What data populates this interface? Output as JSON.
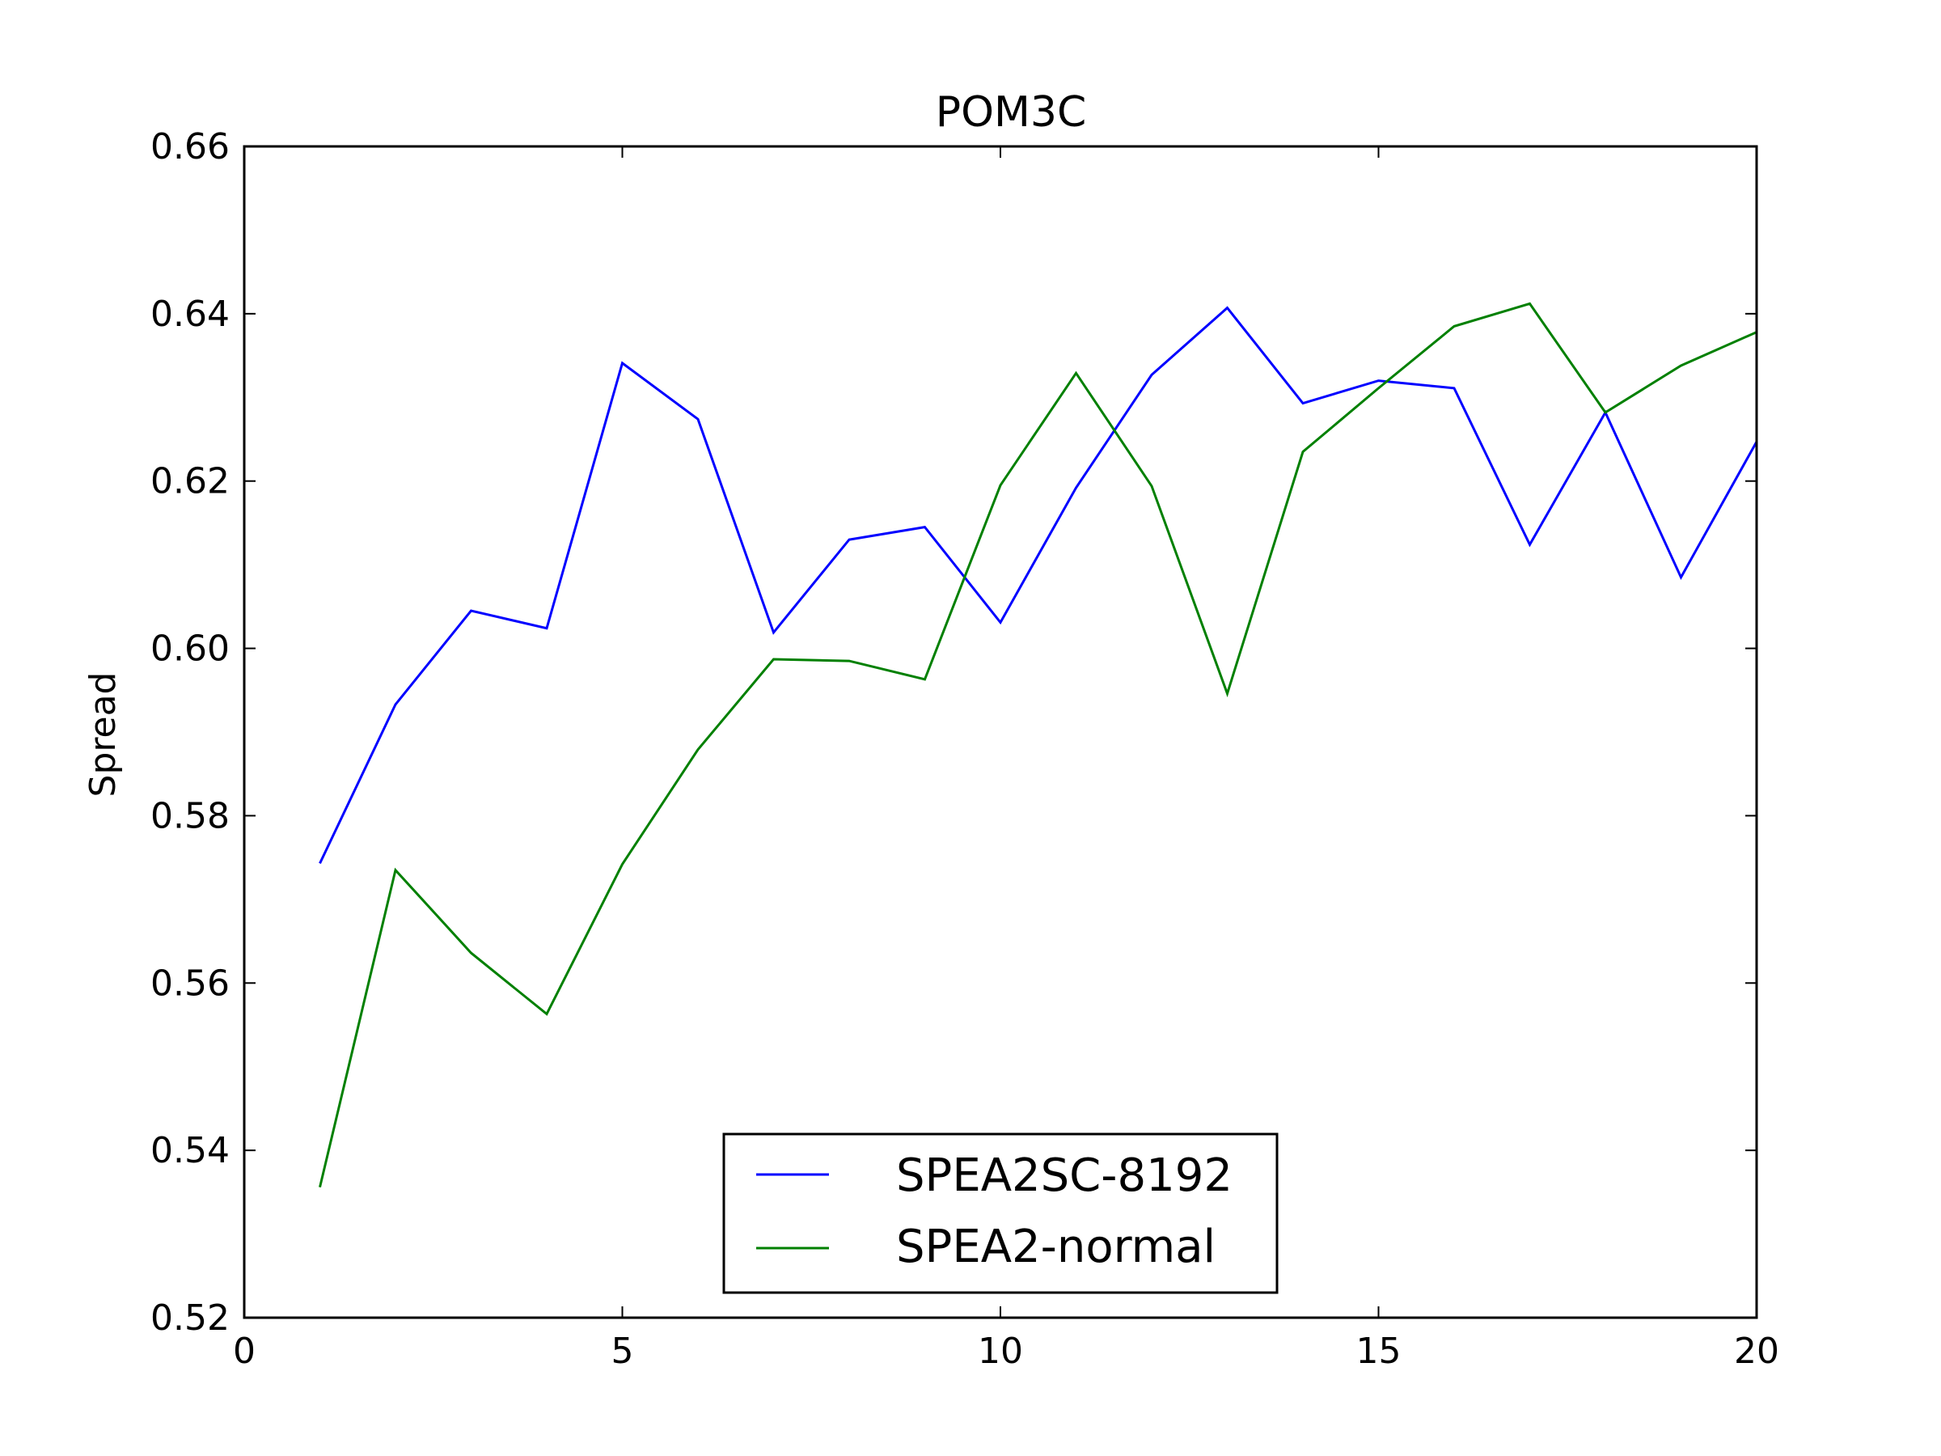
{
  "chart_data": {
    "type": "line",
    "title": "POM3C",
    "xlabel": "",
    "ylabel": "Spread",
    "xlim": [
      0,
      20
    ],
    "ylim": [
      0.52,
      0.66
    ],
    "xticks": [
      0,
      5,
      10,
      15,
      20
    ],
    "xtick_labels": [
      "0",
      "5",
      "10",
      "15",
      "20"
    ],
    "yticks": [
      0.52,
      0.54,
      0.56,
      0.58,
      0.6,
      0.62,
      0.64,
      0.66
    ],
    "ytick_labels": [
      "0.52",
      "0.54",
      "0.56",
      "0.58",
      "0.60",
      "0.62",
      "0.64",
      "0.66"
    ],
    "grid": false,
    "legend_position": "bottom-center",
    "x": [
      1,
      2,
      3,
      4,
      5,
      6,
      7,
      8,
      9,
      10,
      11,
      12,
      13,
      14,
      15,
      16,
      17,
      18,
      19,
      20
    ],
    "series": [
      {
        "name": "SPEA2SC-8192",
        "color": "#0000ff",
        "values": [
          0.5743,
          0.5933,
          0.6045,
          0.6024,
          0.6341,
          0.6274,
          0.6019,
          0.613,
          0.6145,
          0.6031,
          0.6192,
          0.6327,
          0.6407,
          0.6293,
          0.632,
          0.6311,
          0.6124,
          0.6282,
          0.6085,
          0.6247
        ]
      },
      {
        "name": "SPEA2-normal",
        "color": "#008000",
        "values": [
          0.5356,
          0.5735,
          0.5636,
          0.5563,
          0.5742,
          0.5879,
          0.5987,
          0.5985,
          0.5963,
          0.6195,
          0.6329,
          0.6194,
          0.5946,
          0.6235,
          0.6311,
          0.6385,
          0.6412,
          0.6282,
          0.6338,
          0.6378
        ]
      }
    ]
  }
}
